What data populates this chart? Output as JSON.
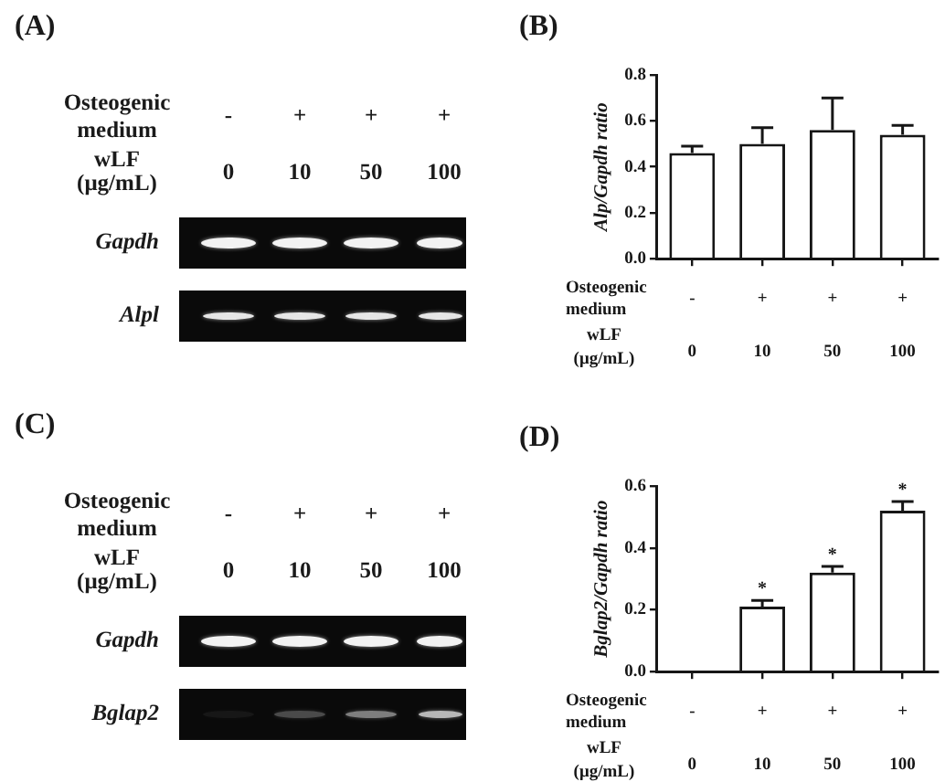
{
  "chart_data": [
    {
      "type": "other",
      "title": "(A)",
      "annotations": [
        "Osteogenic medium",
        "-",
        "+",
        "+",
        "+",
        "wLF (μg/mL)",
        "0",
        "10",
        "50",
        "100",
        "Gapdh",
        "Alpl"
      ]
    },
    {
      "type": "bar",
      "title": "(B)",
      "ylabel": "Alp/Gapdh ratio",
      "xlabel": "wLF (μg/mL)",
      "categories": [
        "0",
        "10",
        "50",
        "100"
      ],
      "values": [
        0.46,
        0.5,
        0.56,
        0.54
      ],
      "errors": [
        [
          0.46,
          0.49
        ],
        [
          0.5,
          0.57
        ],
        [
          0.56,
          0.7
        ],
        [
          0.54,
          0.58
        ]
      ],
      "color": "#ffffff",
      "ylim": [
        0,
        0.8
      ],
      "yticks": [
        {
          "value": 0,
          "label": "0.0"
        },
        0.2,
        0.4,
        0.6,
        0.8
      ],
      "annotations": [
        "Osteogenic medium",
        "-",
        "+",
        "+",
        "+"
      ]
    },
    {
      "type": "other",
      "title": "(C)",
      "annotations": [
        "Osteogenic medium",
        "-",
        "+",
        "+",
        "+",
        "wLF (μg/mL)",
        "0",
        "10",
        "50",
        "100",
        "Gapdh",
        "Bglap2"
      ]
    },
    {
      "type": "bar",
      "title": "(D)",
      "ylabel": "Bglap2/Gapdh ratio",
      "xlabel": "wLF (μg/mL)",
      "categories": [
        "0",
        "10",
        "50",
        "100"
      ],
      "values": [
        0,
        0.21,
        0.32,
        0.52
      ],
      "errors": [
        null,
        [
          0.21,
          0.23
        ],
        [
          0.32,
          0.34
        ],
        [
          0.52,
          0.55
        ]
      ],
      "value_labels": [
        null,
        "*",
        "*",
        "*"
      ],
      "color": "#ffffff",
      "ylim": [
        0,
        0.6
      ],
      "yticks": [
        {
          "value": 0,
          "label": "0.0"
        },
        0.2,
        0.4,
        0.6
      ],
      "annotations": [
        "Osteogenic medium",
        "-",
        "+",
        "+",
        "+"
      ]
    }
  ]
}
